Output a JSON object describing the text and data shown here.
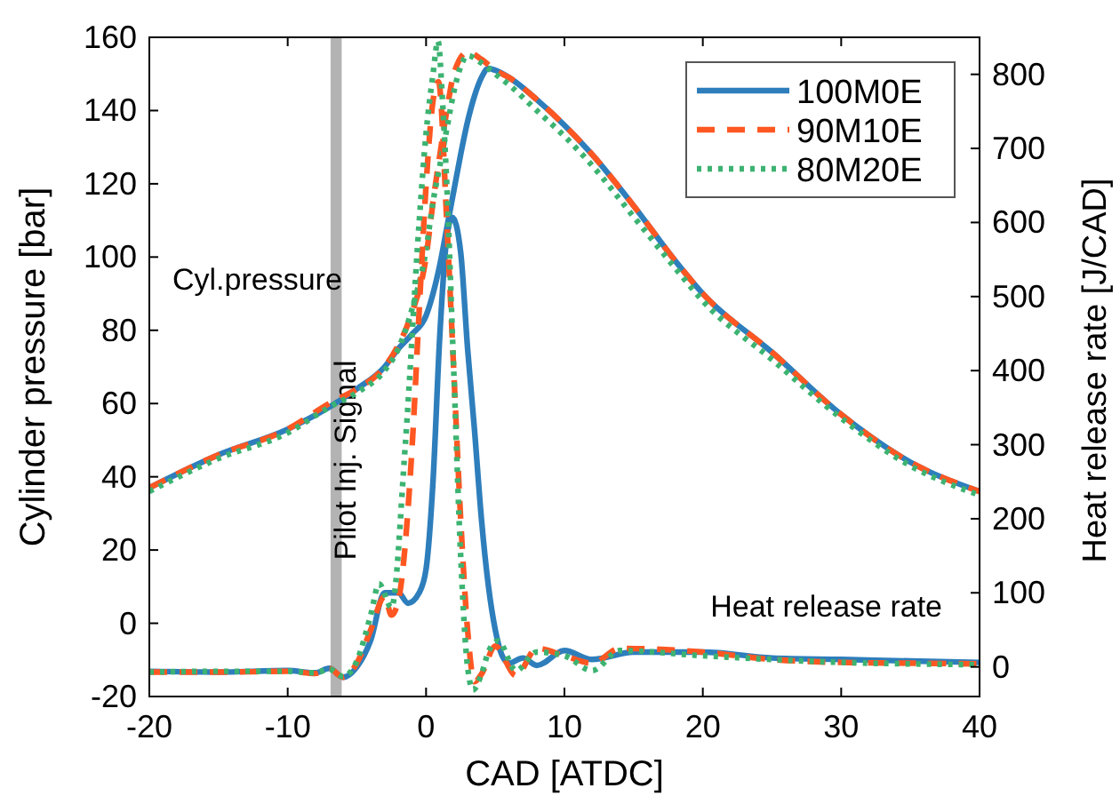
{
  "chart_data": {
    "type": "line",
    "xlabel": "CAD [ATDC]",
    "ylabel": "Cylinder pressure [bar]",
    "y2label": "Heat release rate [J/CAD]",
    "xlim": [
      -20,
      40
    ],
    "xticks": [
      -20,
      -10,
      0,
      10,
      20,
      30,
      40
    ],
    "ylim": [
      -20,
      160
    ],
    "yticks": [
      -20,
      0,
      20,
      40,
      60,
      80,
      100,
      120,
      140,
      160
    ],
    "y2lim": [
      -40,
      850
    ],
    "y2ticks": [
      0,
      100,
      200,
      300,
      400,
      500,
      600,
      700,
      800
    ],
    "grid": false,
    "legend": "top right",
    "annotations": [
      "Cyl.pressure",
      "Heat release rate"
    ],
    "bands": [
      {
        "axis": "x",
        "from": -6.9,
        "to": -6.1,
        "label": "Pilot Inj. Signal",
        "color": "#b3b3b3"
      }
    ],
    "series": [
      {
        "name": "100M0E",
        "color": "#2e7ebc",
        "line_style": "solid",
        "x": [
          -20,
          -15,
          -10,
          -7,
          -5,
          -3,
          -2,
          -1,
          0,
          0.5,
          1,
          1.5,
          2,
          2.5,
          3,
          3.5,
          4,
          4.5,
          5,
          6,
          8,
          10,
          12,
          15,
          18,
          20,
          25,
          30,
          35,
          40
        ],
        "values": [
          37,
          46,
          53,
          59,
          64,
          70,
          75,
          79,
          84,
          90,
          98,
          108,
          118,
          128,
          137,
          144,
          149,
          151.5,
          151,
          149,
          143,
          136,
          128,
          114,
          99,
          90,
          74,
          57,
          44,
          36
        ]
      },
      {
        "name": "90M10E",
        "color": "#ff5722",
        "line_style": "dashed",
        "x": [
          -20,
          -15,
          -10,
          -7,
          -5,
          -3,
          -2,
          -1,
          0,
          0.5,
          1,
          1.5,
          2,
          3,
          4,
          5,
          6,
          8,
          10,
          12,
          15,
          18,
          20,
          25,
          30,
          35,
          40
        ],
        "values": [
          37,
          46,
          53,
          60,
          64,
          70,
          76,
          85,
          100,
          115,
          128,
          140,
          150,
          156,
          154,
          151,
          149,
          143,
          136,
          128,
          114,
          99,
          90,
          74,
          57,
          44,
          36
        ]
      },
      {
        "name": "80M20E",
        "color": "#3cb371",
        "line_style": "dotted",
        "x": [
          -20,
          -15,
          -10,
          -7,
          -5,
          -3,
          -2,
          -1,
          0,
          0.5,
          1,
          1.5,
          2,
          2.5,
          3,
          4,
          5,
          6,
          8,
          10,
          12,
          15,
          18,
          20,
          25,
          30,
          35,
          40
        ],
        "values": [
          36,
          45,
          52,
          59,
          63,
          69,
          75,
          86,
          102,
          115,
          125,
          135,
          145,
          152,
          155,
          153,
          150,
          147,
          140,
          133,
          125,
          111,
          97,
          88,
          72,
          56,
          43,
          35
        ]
      },
      {
        "color": "#2e7ebc",
        "line_style": "solid",
        "axis": "y2",
        "x": [
          -20,
          -15,
          -10,
          -8,
          -7,
          -6,
          -5,
          -4,
          -3,
          -2,
          -1.3,
          -0.5,
          0,
          0.5,
          1,
          1.5,
          1.9,
          2.5,
          3,
          3.5,
          4,
          4.5,
          5,
          5.5,
          6,
          7,
          8,
          10,
          12,
          15,
          20,
          25,
          30,
          35,
          40
        ],
        "values": [
          -6,
          -7,
          -5,
          -8,
          -2,
          -14,
          0,
          36,
          100,
          100,
          86,
          100,
          132,
          250,
          450,
          580,
          607,
          560,
          430,
          320,
          200,
          110,
          50,
          15,
          5,
          12,
          2,
          22,
          10,
          20,
          20,
          12,
          10,
          8,
          6
        ]
      },
      {
        "color": "#ff5722",
        "line_style": "dashed",
        "axis": "y2",
        "x": [
          -20,
          -15,
          -10,
          -8,
          -7,
          -6,
          -5,
          -4,
          -3,
          -2.5,
          -2,
          -1,
          -0.5,
          0,
          0.5,
          0.9,
          1.5,
          2,
          2.5,
          3,
          3.5,
          4,
          5,
          6.5,
          8,
          10,
          12,
          14,
          20,
          25,
          30,
          35,
          40
        ],
        "values": [
          -7,
          -7,
          -6,
          -9,
          -2,
          -14,
          5,
          50,
          95,
          70,
          90,
          300,
          480,
          650,
          764,
          790,
          600,
          400,
          200,
          50,
          -20,
          -10,
          28,
          -12,
          25,
          15,
          5,
          25,
          20,
          10,
          6,
          5,
          4
        ]
      },
      {
        "color": "#3cb371",
        "line_style": "dotted",
        "axis": "y2",
        "x": [
          -20,
          -15,
          -10,
          -8,
          -7,
          -6,
          -5,
          -4,
          -3.4,
          -2.5,
          -1.5,
          -0.5,
          0,
          0.5,
          0.86,
          1.2,
          1.5,
          2,
          2.5,
          3,
          3.4,
          4,
          4.5,
          5.2,
          6.5,
          8,
          10,
          12,
          14,
          20,
          25,
          30,
          35,
          40
        ],
        "values": [
          -7,
          -6,
          -6,
          -8,
          -3,
          -13,
          8,
          70,
          112,
          80,
          300,
          600,
          720,
          800,
          845,
          760,
          650,
          400,
          150,
          0,
          -31,
          -10,
          20,
          35,
          -5,
          20,
          15,
          -5,
          22,
          15,
          10,
          6,
          4,
          3
        ]
      }
    ]
  }
}
